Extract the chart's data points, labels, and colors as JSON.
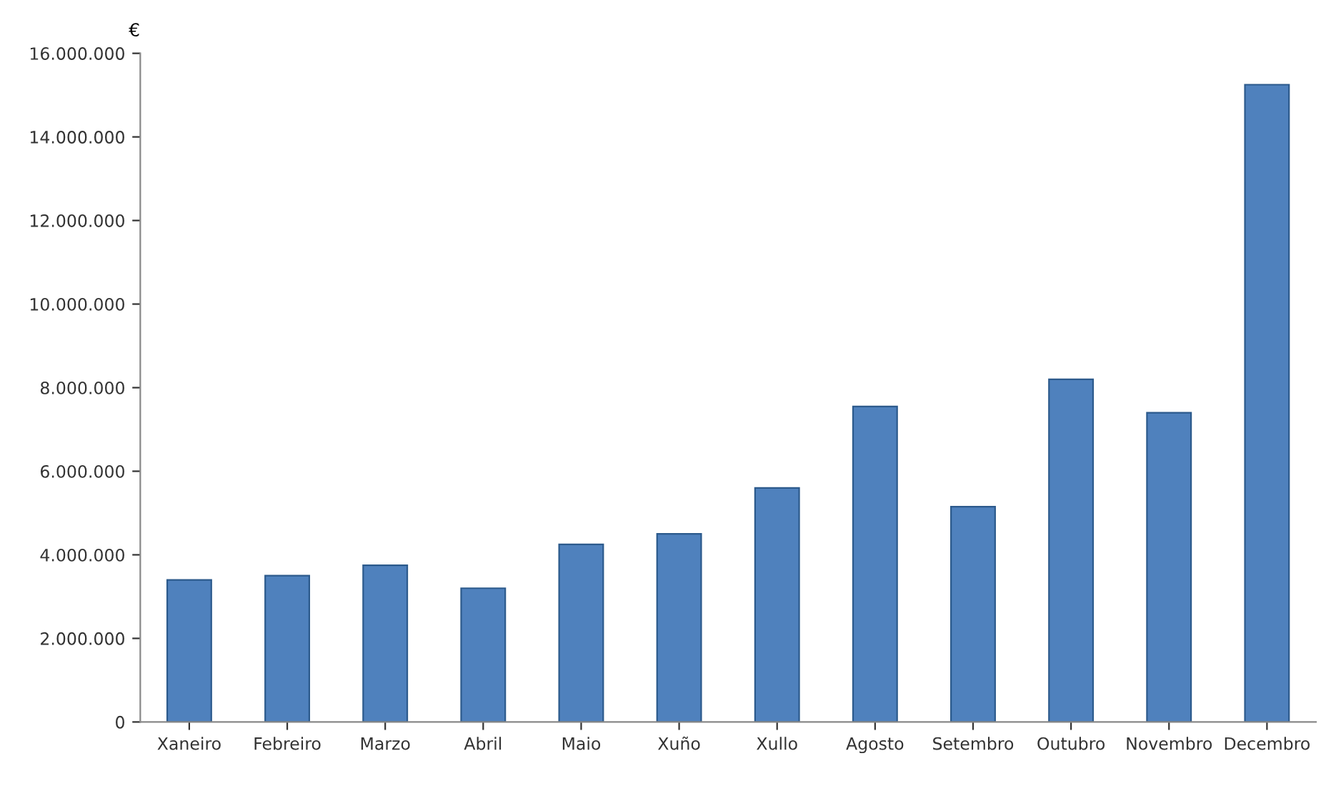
{
  "chart_data": {
    "type": "bar",
    "ylabel": "€",
    "categories": [
      "Xaneiro",
      "Febreiro",
      "Marzo",
      "Abril",
      "Maio",
      "Xuño",
      "Xullo",
      "Agosto",
      "Setembro",
      "Outubro",
      "Novembro",
      "Decembro"
    ],
    "values": [
      3400000,
      3500000,
      3750000,
      3200000,
      4250000,
      4500000,
      5600000,
      7550000,
      5150000,
      8200000,
      7400000,
      15250000
    ],
    "color": "#4f81bd",
    "ylim": [
      0,
      16000000
    ],
    "yticks": [
      {
        "value": 0,
        "label": "0"
      },
      {
        "value": 2000000,
        "label": "2.000.000"
      },
      {
        "value": 4000000,
        "label": "4.000.000"
      },
      {
        "value": 6000000,
        "label": "6.000.000"
      },
      {
        "value": 8000000,
        "label": "8.000.000"
      },
      {
        "value": 10000000,
        "label": "10.000.000"
      },
      {
        "value": 12000000,
        "label": "12.000.000"
      },
      {
        "value": 14000000,
        "label": "14.000.000"
      },
      {
        "value": 16000000,
        "label": "16.000.000"
      }
    ],
    "grid": false
  }
}
